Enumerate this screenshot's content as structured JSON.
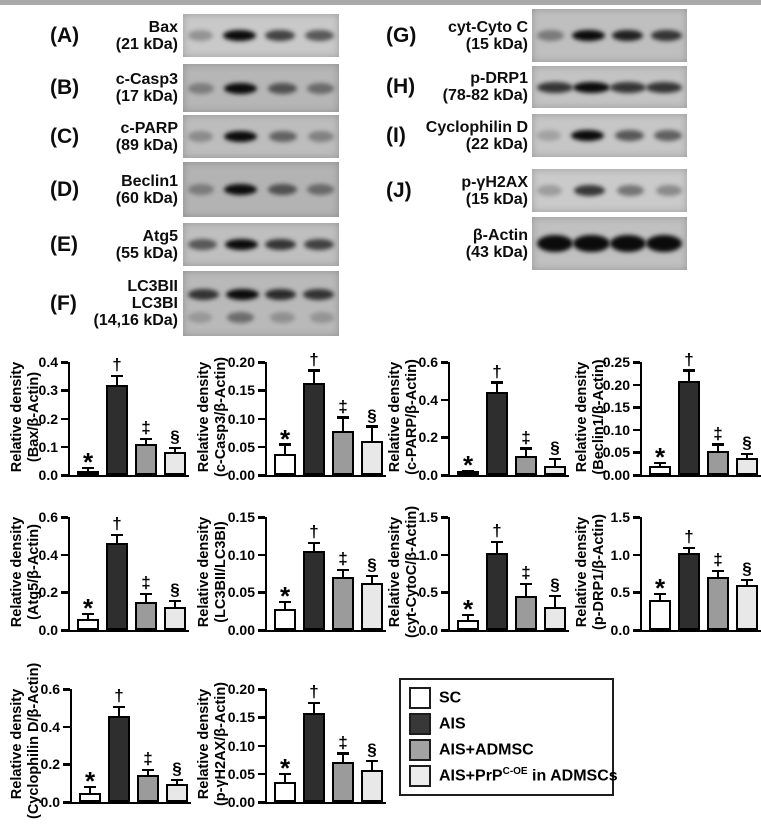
{
  "blots": {
    "left": [
      {
        "letter": "(A)",
        "label_lines": [
          "Bax",
          "(21 kDa)"
        ],
        "bg": "#c9c9c9",
        "band_rows": [
          [
            0.45,
            1.0,
            0.8,
            0.72
          ]
        ]
      },
      {
        "letter": "(B)",
        "label_lines": [
          "c-Casp3",
          "(17 kDa)"
        ],
        "bg": "#b6b6b6",
        "band_rows": [
          [
            0.5,
            1.0,
            0.72,
            0.6
          ]
        ]
      },
      {
        "letter": "(C)",
        "label_lines": [
          "c-PARP",
          "(89 kDa)"
        ],
        "bg": "#bdbdbd",
        "band_rows": [
          [
            0.45,
            1.0,
            0.65,
            0.5
          ]
        ]
      },
      {
        "letter": "(D)",
        "label_lines": [
          "Beclin1",
          "(60 kDa)"
        ],
        "bg": "#b3b3b3",
        "band_rows": [
          [
            0.5,
            1.0,
            0.72,
            0.6
          ]
        ]
      },
      {
        "letter": "(E)",
        "label_lines": [
          "Atg5",
          "(55 kDa)"
        ],
        "bg": "#bfbfbf",
        "band_rows": [
          [
            0.7,
            1.0,
            0.85,
            0.8
          ]
        ]
      },
      {
        "letter": "(F)",
        "label_lines": [
          "LC3BII",
          "LC3BI",
          "(14,16 kDa)"
        ],
        "bg": "#b9b9b9",
        "band_rows": [
          [
            0.85,
            1.0,
            0.88,
            0.85
          ],
          [
            0.35,
            0.6,
            0.4,
            0.38
          ]
        ]
      }
    ],
    "right": [
      {
        "letter": "(G)",
        "label_lines": [
          "cyt-Cyto C",
          "(15 kDa)"
        ],
        "bg": "#bfbfbf",
        "band_rows": [
          [
            0.55,
            1.0,
            0.92,
            0.85
          ]
        ]
      },
      {
        "letter": "(H)",
        "label_lines": [
          "p-DRP1",
          "(78-82 kDa)"
        ],
        "bg": "#c3c3c3",
        "band_rows": [
          [
            0.85,
            1.0,
            0.85,
            0.85
          ]
        ],
        "band_w": 32
      },
      {
        "letter": "(I)",
        "label_lines": [
          "Cyclophilin D",
          "(22 kDa)"
        ],
        "bg": "#c6c6c6",
        "band_rows": [
          [
            0.35,
            1.0,
            0.72,
            0.68
          ]
        ]
      },
      {
        "letter": "(J)",
        "label_lines": [
          "p-γH2AX",
          "(15 kDa)"
        ],
        "bg": "#cacaca",
        "band_rows": [
          [
            0.4,
            0.85,
            0.6,
            0.5
          ]
        ]
      },
      {
        "letter": "",
        "label_lines": [
          "β-Actin",
          "(43 kDa)"
        ],
        "bg": "#c0c0c0",
        "band_rows": [
          [
            1.0,
            1.0,
            1.0,
            1.0
          ]
        ],
        "band_h": 17,
        "band_w": 32
      }
    ]
  },
  "chart_style": {
    "type": "bar",
    "categories": [
      "SC",
      "AIS",
      "AIS+ADMSC",
      "AIS+PrP C-OE in ADMSCs"
    ],
    "bar_colors": [
      "#ffffff",
      "#2e2e2e",
      "#9b9b9b",
      "#e8e8e8"
    ],
    "grid": false,
    "legend_position": "boxed legend at bottom right of figure",
    "error_bars": "SEM caps on top of each bar",
    "significance_symbols": [
      "*",
      "†",
      "‡",
      "§"
    ]
  },
  "chart_data": [
    {
      "type": "bar",
      "key": "bax",
      "ylabel": "Relative density",
      "ylabel2": "(Bax/β-Actin)",
      "categories": [
        "SC",
        "AIS",
        "AIS+ADMSC",
        "AIS+PrP C-OE in ADMSCs"
      ],
      "values": [
        0.015,
        0.32,
        0.11,
        0.08
      ],
      "errors": [
        0.006,
        0.028,
        0.014,
        0.013
      ],
      "symbols": [
        "*",
        "†",
        "‡",
        "§"
      ],
      "ylim": [
        0,
        0.4
      ],
      "yticks": [
        "0.0",
        "0.1",
        "0.2",
        "0.3",
        "0.4"
      ]
    },
    {
      "type": "bar",
      "key": "c-casp3",
      "ylabel": "Relative density",
      "ylabel2": "(c-Casp3/β-Actin)",
      "categories": [
        "SC",
        "AIS",
        "AIS+ADMSC",
        "AIS+PrP C-OE in ADMSCs"
      ],
      "values": [
        0.037,
        0.162,
        0.078,
        0.06
      ],
      "errors": [
        0.015,
        0.021,
        0.022,
        0.024
      ],
      "symbols": [
        "*",
        "†",
        "‡",
        "§"
      ],
      "ylim": [
        0,
        0.2
      ],
      "yticks": [
        "0.00",
        "0.05",
        "0.10",
        "0.15",
        "0.20"
      ]
    },
    {
      "type": "bar",
      "key": "c-parp",
      "ylabel": "Relative density",
      "ylabel2": "(c-PARP/β-Actin)",
      "categories": [
        "SC",
        "AIS",
        "AIS+ADMSC",
        "AIS+PrP C-OE in ADMSCs"
      ],
      "values": [
        0.01,
        0.44,
        0.1,
        0.05
      ],
      "errors": [
        0.006,
        0.045,
        0.035,
        0.028
      ],
      "symbols": [
        "*",
        "†",
        "‡",
        "§"
      ],
      "ylim": [
        0,
        0.6
      ],
      "yticks": [
        "0.0",
        "0.2",
        "0.4",
        "0.6"
      ]
    },
    {
      "type": "bar",
      "key": "beclin1",
      "ylabel": "Relative density",
      "ylabel2": "(Beclin1/β-Actin)",
      "categories": [
        "SC",
        "AIS",
        "AIS+ADMSC",
        "AIS+PrP C-OE in ADMSCs"
      ],
      "values": [
        0.02,
        0.207,
        0.053,
        0.038
      ],
      "errors": [
        0.005,
        0.022,
        0.012,
        0.006
      ],
      "symbols": [
        "*",
        "†",
        "‡",
        "§"
      ],
      "ylim": [
        0,
        0.25
      ],
      "yticks": [
        "0.00",
        "0.05",
        "0.10",
        "0.15",
        "0.20",
        "0.25"
      ]
    },
    {
      "type": "bar",
      "key": "atg5",
      "ylabel": "Relative density",
      "ylabel2": "(Atg5/β-Actin)",
      "categories": [
        "SC",
        "AIS",
        "AIS+ADMSC",
        "AIS+PrP C-OE in ADMSCs"
      ],
      "values": [
        0.06,
        0.46,
        0.15,
        0.12
      ],
      "errors": [
        0.02,
        0.04,
        0.035,
        0.03
      ],
      "symbols": [
        "*",
        "†",
        "‡",
        "§"
      ],
      "ylim": [
        0,
        0.6
      ],
      "yticks": [
        "0.0",
        "0.2",
        "0.4",
        "0.6"
      ]
    },
    {
      "type": "bar",
      "key": "lc3b-ratio",
      "ylabel": "Relative density",
      "ylabel2": "(LC3BII/LC3BI)",
      "categories": [
        "SC",
        "AIS",
        "AIS+ADMSC",
        "AIS+PrP C-OE in ADMSCs"
      ],
      "values": [
        0.028,
        0.105,
        0.071,
        0.063
      ],
      "errors": [
        0.008,
        0.009,
        0.007,
        0.007
      ],
      "symbols": [
        "*",
        "†",
        "‡",
        "§"
      ],
      "ylim": [
        0,
        0.15
      ],
      "yticks": [
        "0.00",
        "0.05",
        "0.10",
        "0.15"
      ]
    },
    {
      "type": "bar",
      "key": "cyt-cytoc",
      "ylabel": "Relative density",
      "ylabel2": "(cyt-CytoC/β-Actin)",
      "categories": [
        "SC",
        "AIS",
        "AIS+ADMSC",
        "AIS+PrP C-OE in ADMSCs"
      ],
      "values": [
        0.13,
        1.02,
        0.45,
        0.31
      ],
      "errors": [
        0.06,
        0.13,
        0.15,
        0.13
      ],
      "symbols": [
        "*",
        "†",
        "‡",
        "§"
      ],
      "ylim": [
        0,
        1.5
      ],
      "yticks": [
        "0.0",
        "0.5",
        "1.0",
        "1.5"
      ]
    },
    {
      "type": "bar",
      "key": "p-drp1",
      "ylabel": "Relative density",
      "ylabel2": "(p-DRP1/β-Actin)",
      "categories": [
        "SC",
        "AIS",
        "AIS+ADMSC",
        "AIS+PrP C-OE in ADMSCs"
      ],
      "values": [
        0.4,
        1.02,
        0.71,
        0.6
      ],
      "errors": [
        0.06,
        0.05,
        0.06,
        0.05
      ],
      "symbols": [
        "*",
        "†",
        "‡",
        "§"
      ],
      "ylim": [
        0,
        1.5
      ],
      "yticks": [
        "0.0",
        "0.5",
        "1.0",
        "1.5"
      ]
    },
    {
      "type": "bar",
      "key": "cyclophilin-d",
      "ylabel": "Relative density",
      "ylabel2": "(Cyclophilin D/β-Actin)",
      "categories": [
        "SC",
        "AIS",
        "AIS+ADMSC",
        "AIS+PrP C-OE in ADMSCs"
      ],
      "values": [
        0.05,
        0.455,
        0.145,
        0.095
      ],
      "errors": [
        0.025,
        0.045,
        0.02,
        0.015
      ],
      "symbols": [
        "*",
        "†",
        "‡",
        "§"
      ],
      "ylim": [
        0,
        0.6
      ],
      "yticks": [
        "0.0",
        "0.2",
        "0.4",
        "0.6"
      ]
    },
    {
      "type": "bar",
      "key": "p-yh2ax",
      "ylabel": "Relative density",
      "ylabel2": "(p-γH2AX/β-Actin)",
      "categories": [
        "SC",
        "AIS",
        "AIS+ADMSC",
        "AIS+PrP C-OE in ADMSCs"
      ],
      "values": [
        0.035,
        0.158,
        0.071,
        0.057
      ],
      "errors": [
        0.012,
        0.016,
        0.013,
        0.013
      ],
      "symbols": [
        "*",
        "†",
        "‡",
        "§"
      ],
      "ylim": [
        0,
        0.2
      ],
      "yticks": [
        "0.00",
        "0.05",
        "0.10",
        "0.15",
        "0.20"
      ]
    }
  ],
  "legend": {
    "items": [
      {
        "color": "#ffffff",
        "pre": "SC",
        "sup": "",
        "post": ""
      },
      {
        "color": "#383838",
        "pre": "AIS",
        "sup": "",
        "post": ""
      },
      {
        "color": "#a2a2a2",
        "pre": "AIS+ADMSC",
        "sup": "",
        "post": ""
      },
      {
        "color": "#ececec",
        "pre": "AIS+PrP",
        "sup": "C-OE",
        "post": " in ADMSCs"
      }
    ]
  }
}
